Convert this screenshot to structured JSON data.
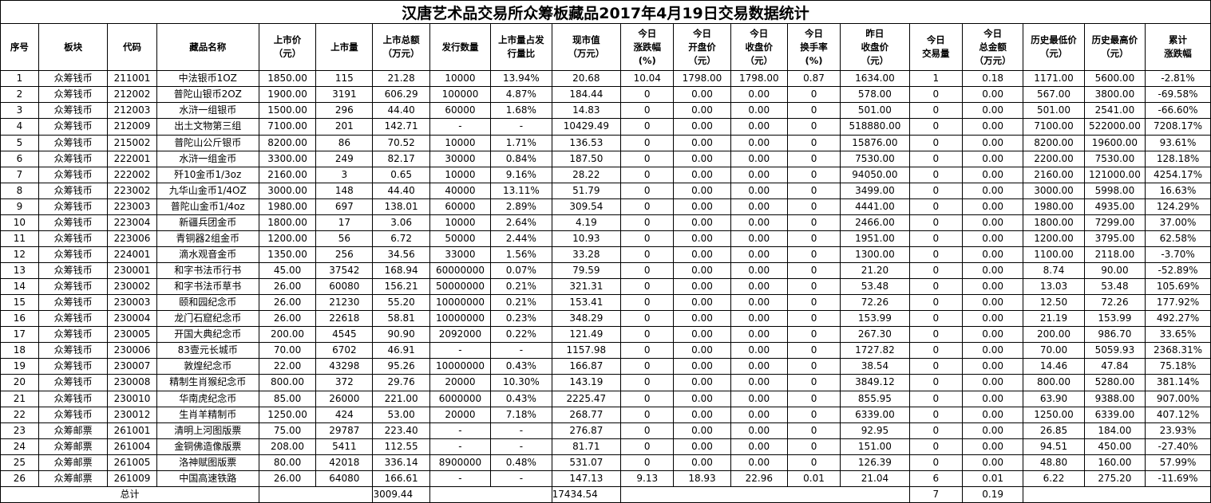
{
  "title": "汉唐艺术品交易所众筹板藏品2017年4月19日交易数据统计",
  "headers": [
    [
      "序号"
    ],
    [
      "板块"
    ],
    [
      "代码"
    ],
    [
      "藏品名称"
    ],
    [
      "上市价",
      "（元）"
    ],
    [
      "上市量"
    ],
    [
      "上市总额",
      "（万元）"
    ],
    [
      "发行数量"
    ],
    [
      "上市量占发",
      "行量比"
    ],
    [
      "现市值",
      "（万元）"
    ],
    [
      "今日",
      "涨跌幅",
      "(%)"
    ],
    [
      "今日",
      "开盘价",
      "（元）"
    ],
    [
      "今日",
      "收盘价",
      "（元）"
    ],
    [
      "今日",
      "换手率",
      "(%)"
    ],
    [
      "昨日",
      "收盘价",
      "（元）"
    ],
    [
      "今日",
      "交易量"
    ],
    [
      "今日",
      "总金额",
      "（万元）"
    ],
    [
      "历史最低价",
      "（元）"
    ],
    [
      "历史最高价",
      "（元）"
    ],
    [
      "累计",
      "涨跌幅"
    ]
  ],
  "rows": [
    [
      "1",
      "众筹钱币",
      "211001",
      "中法银币1OZ",
      "1850.00",
      "115",
      "21.28",
      "10000",
      "13.94%",
      "20.68",
      "10.04",
      "1798.00",
      "1798.00",
      "0.87",
      "1634.00",
      "1",
      "0.18",
      "1171.00",
      "5600.00",
      "-2.81%"
    ],
    [
      "2",
      "众筹钱币",
      "212002",
      "普陀山银币2OZ",
      "1900.00",
      "3191",
      "606.29",
      "100000",
      "4.87%",
      "184.44",
      "0",
      "0.00",
      "0.00",
      "0",
      "578.00",
      "0",
      "0.00",
      "567.00",
      "3800.00",
      "-69.58%"
    ],
    [
      "3",
      "众筹钱币",
      "212003",
      "水浒一组银币",
      "1500.00",
      "296",
      "44.40",
      "60000",
      "1.68%",
      "14.83",
      "0",
      "0.00",
      "0.00",
      "0",
      "501.00",
      "0",
      "0.00",
      "501.00",
      "2541.00",
      "-66.60%"
    ],
    [
      "4",
      "众筹钱币",
      "212009",
      "出土文物第三组",
      "7100.00",
      "201",
      "142.71",
      "-",
      "-",
      "10429.49",
      "0",
      "0.00",
      "0.00",
      "0",
      "518880.00",
      "0",
      "0.00",
      "7100.00",
      "522000.00",
      "7208.17%"
    ],
    [
      "5",
      "众筹钱币",
      "215002",
      "普陀山公斤银币",
      "8200.00",
      "86",
      "70.52",
      "10000",
      "1.71%",
      "136.53",
      "0",
      "0.00",
      "0.00",
      "0",
      "15876.00",
      "0",
      "0.00",
      "8200.00",
      "19600.00",
      "93.61%"
    ],
    [
      "6",
      "众筹钱币",
      "222001",
      "水浒一组金币",
      "3300.00",
      "249",
      "82.17",
      "30000",
      "0.84%",
      "187.50",
      "0",
      "0.00",
      "0.00",
      "0",
      "7530.00",
      "0",
      "0.00",
      "2200.00",
      "7530.00",
      "128.18%"
    ],
    [
      "7",
      "众筹钱币",
      "222002",
      "歼10金币1/3oz",
      "2160.00",
      "3",
      "0.65",
      "10000",
      "9.16%",
      "28.22",
      "0",
      "0.00",
      "0.00",
      "0",
      "94050.00",
      "0",
      "0.00",
      "2160.00",
      "121000.00",
      "4254.17%"
    ],
    [
      "8",
      "众筹钱币",
      "223002",
      "九华山金币1/4OZ",
      "3000.00",
      "148",
      "44.40",
      "40000",
      "13.11%",
      "51.79",
      "0",
      "0.00",
      "0.00",
      "0",
      "3499.00",
      "0",
      "0.00",
      "3000.00",
      "5998.00",
      "16.63%"
    ],
    [
      "9",
      "众筹钱币",
      "223003",
      "普陀山金币1/4oz",
      "1980.00",
      "697",
      "138.01",
      "60000",
      "2.89%",
      "309.54",
      "0",
      "0.00",
      "0.00",
      "0",
      "4441.00",
      "0",
      "0.00",
      "1980.00",
      "4935.00",
      "124.29%"
    ],
    [
      "10",
      "众筹钱币",
      "223004",
      "新疆兵团金币",
      "1800.00",
      "17",
      "3.06",
      "10000",
      "2.64%",
      "4.19",
      "0",
      "0.00",
      "0.00",
      "0",
      "2466.00",
      "0",
      "0.00",
      "1800.00",
      "7299.00",
      "37.00%"
    ],
    [
      "11",
      "众筹钱币",
      "223006",
      "青铜器2组金币",
      "1200.00",
      "56",
      "6.72",
      "50000",
      "2.44%",
      "10.93",
      "0",
      "0.00",
      "0.00",
      "0",
      "1951.00",
      "0",
      "0.00",
      "1200.00",
      "3795.00",
      "62.58%"
    ],
    [
      "12",
      "众筹钱币",
      "224001",
      "滴水观音金币",
      "1350.00",
      "256",
      "34.56",
      "33000",
      "1.56%",
      "33.28",
      "0",
      "0.00",
      "0.00",
      "0",
      "1300.00",
      "0",
      "0.00",
      "1100.00",
      "2118.00",
      "-3.70%"
    ],
    [
      "13",
      "众筹钱币",
      "230001",
      "和字书法币行书",
      "45.00",
      "37542",
      "168.94",
      "60000000",
      "0.07%",
      "79.59",
      "0",
      "0.00",
      "0.00",
      "0",
      "21.20",
      "0",
      "0.00",
      "8.74",
      "90.00",
      "-52.89%"
    ],
    [
      "14",
      "众筹钱币",
      "230002",
      "和字书法币草书",
      "26.00",
      "60080",
      "156.21",
      "50000000",
      "0.21%",
      "321.31",
      "0",
      "0.00",
      "0.00",
      "0",
      "53.48",
      "0",
      "0.00",
      "13.03",
      "53.48",
      "105.69%"
    ],
    [
      "15",
      "众筹钱币",
      "230003",
      "颐和园纪念币",
      "26.00",
      "21230",
      "55.20",
      "10000000",
      "0.21%",
      "153.41",
      "0",
      "0.00",
      "0.00",
      "0",
      "72.26",
      "0",
      "0.00",
      "12.50",
      "72.26",
      "177.92%"
    ],
    [
      "16",
      "众筹钱币",
      "230004",
      "龙门石窟纪念币",
      "26.00",
      "22618",
      "58.81",
      "10000000",
      "0.23%",
      "348.29",
      "0",
      "0.00",
      "0.00",
      "0",
      "153.99",
      "0",
      "0.00",
      "21.19",
      "153.99",
      "492.27%"
    ],
    [
      "17",
      "众筹钱币",
      "230005",
      "开国大典纪念币",
      "200.00",
      "4545",
      "90.90",
      "2092000",
      "0.22%",
      "121.49",
      "0",
      "0.00",
      "0.00",
      "0",
      "267.30",
      "0",
      "0.00",
      "200.00",
      "986.70",
      "33.65%"
    ],
    [
      "18",
      "众筹钱币",
      "230006",
      "83壹元长城币",
      "70.00",
      "6702",
      "46.91",
      "-",
      "-",
      "1157.98",
      "0",
      "0.00",
      "0.00",
      "0",
      "1727.82",
      "0",
      "0.00",
      "70.00",
      "5059.93",
      "2368.31%"
    ],
    [
      "19",
      "众筹钱币",
      "230007",
      "敦煌纪念币",
      "22.00",
      "43298",
      "95.26",
      "10000000",
      "0.43%",
      "166.87",
      "0",
      "0.00",
      "0.00",
      "0",
      "38.54",
      "0",
      "0.00",
      "14.46",
      "47.84",
      "75.18%"
    ],
    [
      "20",
      "众筹钱币",
      "230008",
      "精制生肖猴纪念币",
      "800.00",
      "372",
      "29.76",
      "20000",
      "10.30%",
      "143.19",
      "0",
      "0.00",
      "0.00",
      "0",
      "3849.12",
      "0",
      "0.00",
      "800.00",
      "5280.00",
      "381.14%"
    ],
    [
      "21",
      "众筹钱币",
      "230010",
      "华南虎纪念币",
      "85.00",
      "26000",
      "221.00",
      "6000000",
      "0.43%",
      "2225.47",
      "0",
      "0.00",
      "0.00",
      "0",
      "855.95",
      "0",
      "0.00",
      "63.90",
      "9388.00",
      "907.00%"
    ],
    [
      "22",
      "众筹钱币",
      "230012",
      "生肖羊精制币",
      "1250.00",
      "424",
      "53.00",
      "20000",
      "7.18%",
      "268.77",
      "0",
      "0.00",
      "0.00",
      "0",
      "6339.00",
      "0",
      "0.00",
      "1250.00",
      "6339.00",
      "407.12%"
    ],
    [
      "23",
      "众筹邮票",
      "261001",
      "清明上河图版票",
      "75.00",
      "29787",
      "223.40",
      "-",
      "-",
      "276.87",
      "0",
      "0.00",
      "0.00",
      "0",
      "92.95",
      "0",
      "0.00",
      "26.85",
      "184.00",
      "23.93%"
    ],
    [
      "24",
      "众筹邮票",
      "261004",
      "金铜佛造像版票",
      "208.00",
      "5411",
      "112.55",
      "-",
      "-",
      "81.71",
      "0",
      "0.00",
      "0.00",
      "0",
      "151.00",
      "0",
      "0.00",
      "94.51",
      "450.00",
      "-27.40%"
    ],
    [
      "25",
      "众筹邮票",
      "261005",
      "洛神赋图版票",
      "80.00",
      "42018",
      "336.14",
      "8900000",
      "0.48%",
      "531.07",
      "0",
      "0.00",
      "0.00",
      "0",
      "126.39",
      "0",
      "0.00",
      "48.80",
      "160.00",
      "57.99%"
    ],
    [
      "26",
      "众筹邮票",
      "261009",
      "中国高速铁路",
      "26.00",
      "64080",
      "166.61",
      "-",
      "-",
      "147.13",
      "9.13",
      "18.93",
      "22.96",
      "0.01",
      "21.04",
      "6",
      "0.01",
      "6.22",
      "275.20",
      "-11.69%"
    ]
  ],
  "total": {
    "label": "总计",
    "listing_total": "3009.44",
    "market_value": "17434.54",
    "volume": "7",
    "amount": "0.19"
  }
}
